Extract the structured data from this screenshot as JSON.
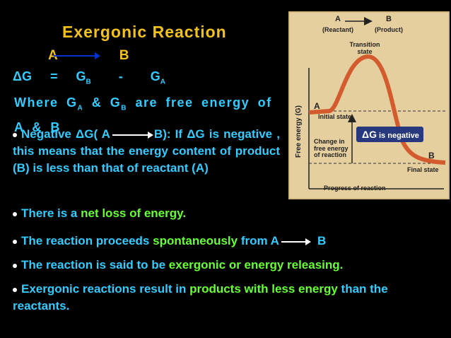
{
  "title": "Exergonic Reaction",
  "reaction": {
    "left": "A",
    "right": "B"
  },
  "delta_g": {
    "lhs": "ΔG",
    "equals": "=",
    "g1": "G",
    "sub1": "B",
    "minus": "-",
    "g2": "G",
    "sub2": "A"
  },
  "where": {
    "part1": "Where G",
    "sub1": "A",
    "part2": " & G",
    "sub2": "B",
    "part3": " are free energy of A & B"
  },
  "bullets": [
    {
      "part1": "Negative ΔG( A",
      "part2": "B): If ΔG is negative , this means that the energy content of product (B) is less than that of reactant (A)"
    },
    {
      "part1": "There is a ",
      "highlight": "net loss of energy."
    },
    {
      "part1": "The reaction proceeds ",
      "highlight": "spontaneously",
      "part2": " from A",
      "part3": "B"
    },
    {
      "part1": "The reaction is said to be ",
      "highlight": "exergonic or energy releasing."
    },
    {
      "part1": "Exergonic reactions result in ",
      "highlight": "products with less energy",
      "part2": " than the reactants."
    }
  ],
  "diagram": {
    "top_a": "A",
    "top_b": "B",
    "reactant": "(Reactant)",
    "product": "(Product)",
    "transition": "Transition state",
    "y_axis": "Free energy (G)",
    "a": "A",
    "initial": "Initial state",
    "dg_box": "ΔG",
    "dg_box_rest": "is negative",
    "change": "Change in free energy of reaction",
    "b": "B",
    "final": "Final state",
    "x_axis": "Progress of reaction"
  }
}
